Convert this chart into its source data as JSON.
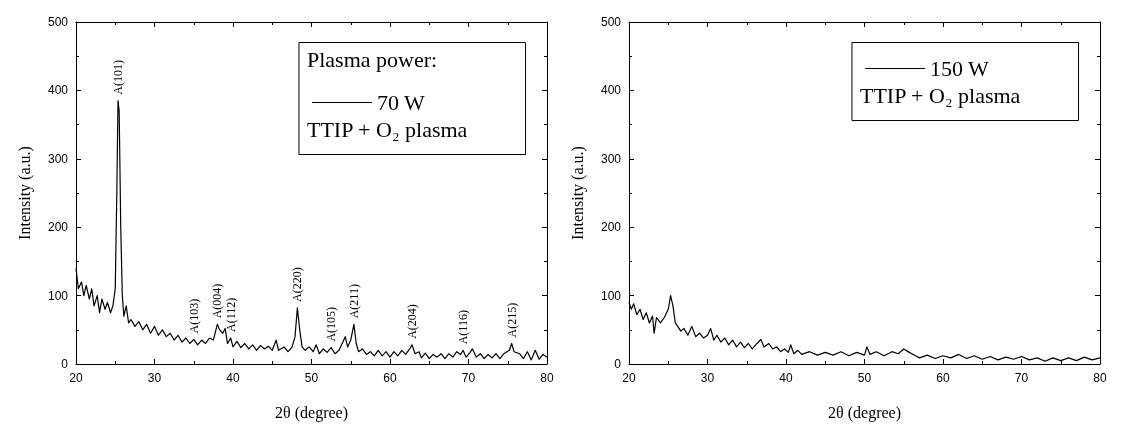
{
  "chart_data": [
    {
      "type": "line",
      "xlabel": "2θ (degree)",
      "ylabel": "Intensity (a.u.)",
      "legend_title": "Plasma power:",
      "legend": "top right",
      "grid": false,
      "xlim": [
        20,
        80
      ],
      "xticks": [
        20,
        30,
        40,
        50,
        60,
        70,
        80
      ],
      "ylim": [
        0,
        500
      ],
      "yticks": [
        0,
        100,
        200,
        300,
        400,
        500
      ],
      "series": [
        {
          "name": "70 W",
          "color": "#000000",
          "x": [
            20,
            20.3,
            20.7,
            21,
            21.3,
            21.7,
            22,
            22.3,
            22.7,
            23,
            23.3,
            23.7,
            24,
            24.4,
            24.7,
            25,
            25.2,
            25.35,
            25.5,
            25.7,
            25.9,
            26.1,
            26.4,
            26.7,
            27,
            27.5,
            28,
            28.5,
            29,
            29.5,
            30,
            30.5,
            31,
            31.5,
            32,
            32.5,
            33,
            33.5,
            34,
            34.5,
            35,
            35.5,
            36,
            36.5,
            37,
            37.5,
            38,
            38.3,
            38.7,
            39,
            39.3,
            39.7,
            40,
            40.5,
            41,
            41.5,
            42,
            42.5,
            43,
            43.5,
            44,
            44.5,
            45,
            45.5,
            45.8,
            46.5,
            47,
            47.5,
            47.9,
            48.2,
            48.5,
            48.8,
            49.2,
            49.7,
            50.2,
            50.6,
            51,
            51.5,
            52,
            52.5,
            53,
            53.5,
            54,
            54.3,
            54.6,
            55,
            55.4,
            55.7,
            56,
            56.5,
            57,
            57.5,
            58,
            58.5,
            59,
            59.5,
            60,
            60.5,
            61,
            61.5,
            62,
            62.5,
            62.8,
            63.2,
            63.7,
            64,
            64.5,
            65,
            65.5,
            66,
            66.5,
            67,
            67.5,
            68,
            68.5,
            69,
            69.3,
            69.7,
            70.2,
            70.5,
            71,
            71.5,
            72,
            72.5,
            73,
            73.5,
            74,
            74.5,
            75.2,
            75.5,
            75.8,
            76.5,
            77,
            77.5,
            78,
            78.5,
            79,
            79.5,
            80
          ],
          "values": [
            140,
            110,
            120,
            100,
            115,
            95,
            110,
            85,
            100,
            75,
            95,
            80,
            90,
            75,
            85,
            110,
            250,
            385,
            370,
            200,
            100,
            70,
            85,
            60,
            65,
            55,
            62,
            50,
            58,
            45,
            55,
            42,
            50,
            40,
            45,
            35,
            42,
            32,
            38,
            30,
            36,
            28,
            35,
            30,
            38,
            35,
            58,
            50,
            45,
            52,
            30,
            38,
            25,
            33,
            24,
            30,
            22,
            28,
            20,
            27,
            22,
            26,
            20,
            35,
            20,
            25,
            18,
            24,
            40,
            82,
            50,
            25,
            20,
            25,
            18,
            28,
            15,
            22,
            17,
            24,
            15,
            20,
            32,
            40,
            25,
            35,
            58,
            30,
            18,
            22,
            14,
            18,
            12,
            20,
            12,
            18,
            10,
            18,
            12,
            20,
            14,
            22,
            28,
            15,
            18,
            9,
            16,
            8,
            14,
            10,
            15,
            8,
            15,
            10,
            18,
            14,
            20,
            10,
            17,
            22,
            10,
            15,
            8,
            14,
            9,
            15,
            8,
            15,
            20,
            30,
            18,
            15,
            8,
            18,
            6,
            20,
            7,
            14,
            10
          ]
        }
      ],
      "annotations": [
        "TTIP + O₂ plasma",
        {
          "text": "A(101)",
          "x": 25.35,
          "y": 385
        },
        {
          "text": "A(103)",
          "x": 35,
          "y": 36
        },
        {
          "text": "A(004)",
          "x": 38,
          "y": 58
        },
        {
          "text": "A(112)",
          "x": 39.7,
          "y": 38
        },
        {
          "text": "A(220)",
          "x": 48.2,
          "y": 82
        },
        {
          "text": "A(105)",
          "x": 52.5,
          "y": 24
        },
        {
          "text": "A(211)",
          "x": 55.4,
          "y": 58
        },
        {
          "text": "A(204)",
          "x": 62.8,
          "y": 28
        },
        {
          "text": "A(116)",
          "x": 69.3,
          "y": 20
        },
        {
          "text": "A(215)",
          "x": 75.5,
          "y": 30
        }
      ]
    },
    {
      "type": "line",
      "xlabel": "2θ (degree)",
      "ylabel": "Intensity (a.u.)",
      "legend": "top right",
      "grid": false,
      "xlim": [
        20,
        80
      ],
      "xticks": [
        20,
        30,
        40,
        50,
        60,
        70,
        80
      ],
      "ylim": [
        0,
        500
      ],
      "yticks": [
        0,
        100,
        200,
        300,
        400,
        500
      ],
      "series": [
        {
          "name": "150 W",
          "color": "#000000",
          "x": [
            20,
            20.3,
            20.6,
            21,
            21.4,
            21.8,
            22.2,
            22.6,
            23,
            23.2,
            23.5,
            24,
            24.5,
            25,
            25.3,
            25.6,
            25.9,
            26.2,
            26.6,
            27,
            27.5,
            28,
            28.5,
            29,
            29.5,
            30,
            30.4,
            30.8,
            31.2,
            31.7,
            32.2,
            32.7,
            33.2,
            33.7,
            34.2,
            34.7,
            35.2,
            35.7,
            36.3,
            36.8,
            37.2,
            37.8,
            38.3,
            38.8,
            39.3,
            39.8,
            40.3,
            40.6,
            41,
            41.5,
            42,
            43,
            44,
            45,
            46,
            47,
            48,
            49,
            50,
            50.3,
            50.7,
            51.5,
            52.5,
            53.5,
            54.3,
            55,
            55.7,
            56.5,
            57,
            58,
            59,
            60,
            61,
            62,
            63,
            64,
            65,
            66,
            67,
            68,
            69,
            70,
            71,
            72,
            73,
            74,
            75,
            76,
            77,
            78,
            79,
            80
          ],
          "values": [
            90,
            80,
            88,
            72,
            80,
            65,
            75,
            60,
            70,
            45,
            68,
            60,
            68,
            80,
            100,
            85,
            60,
            55,
            48,
            52,
            42,
            55,
            40,
            45,
            38,
            42,
            52,
            35,
            42,
            32,
            38,
            28,
            35,
            25,
            32,
            24,
            30,
            22,
            30,
            36,
            25,
            30,
            22,
            25,
            18,
            22,
            17,
            28,
            15,
            20,
            14,
            18,
            13,
            17,
            13,
            18,
            12,
            17,
            13,
            25,
            14,
            18,
            12,
            18,
            15,
            22,
            17,
            12,
            9,
            13,
            8,
            12,
            9,
            14,
            8,
            12,
            7,
            11,
            6,
            10,
            7,
            11,
            6,
            9,
            4,
            9,
            5,
            9,
            5,
            10,
            6,
            9
          ]
        }
      ],
      "annotations": [
        "TTIP + O₂ plasma"
      ]
    }
  ]
}
